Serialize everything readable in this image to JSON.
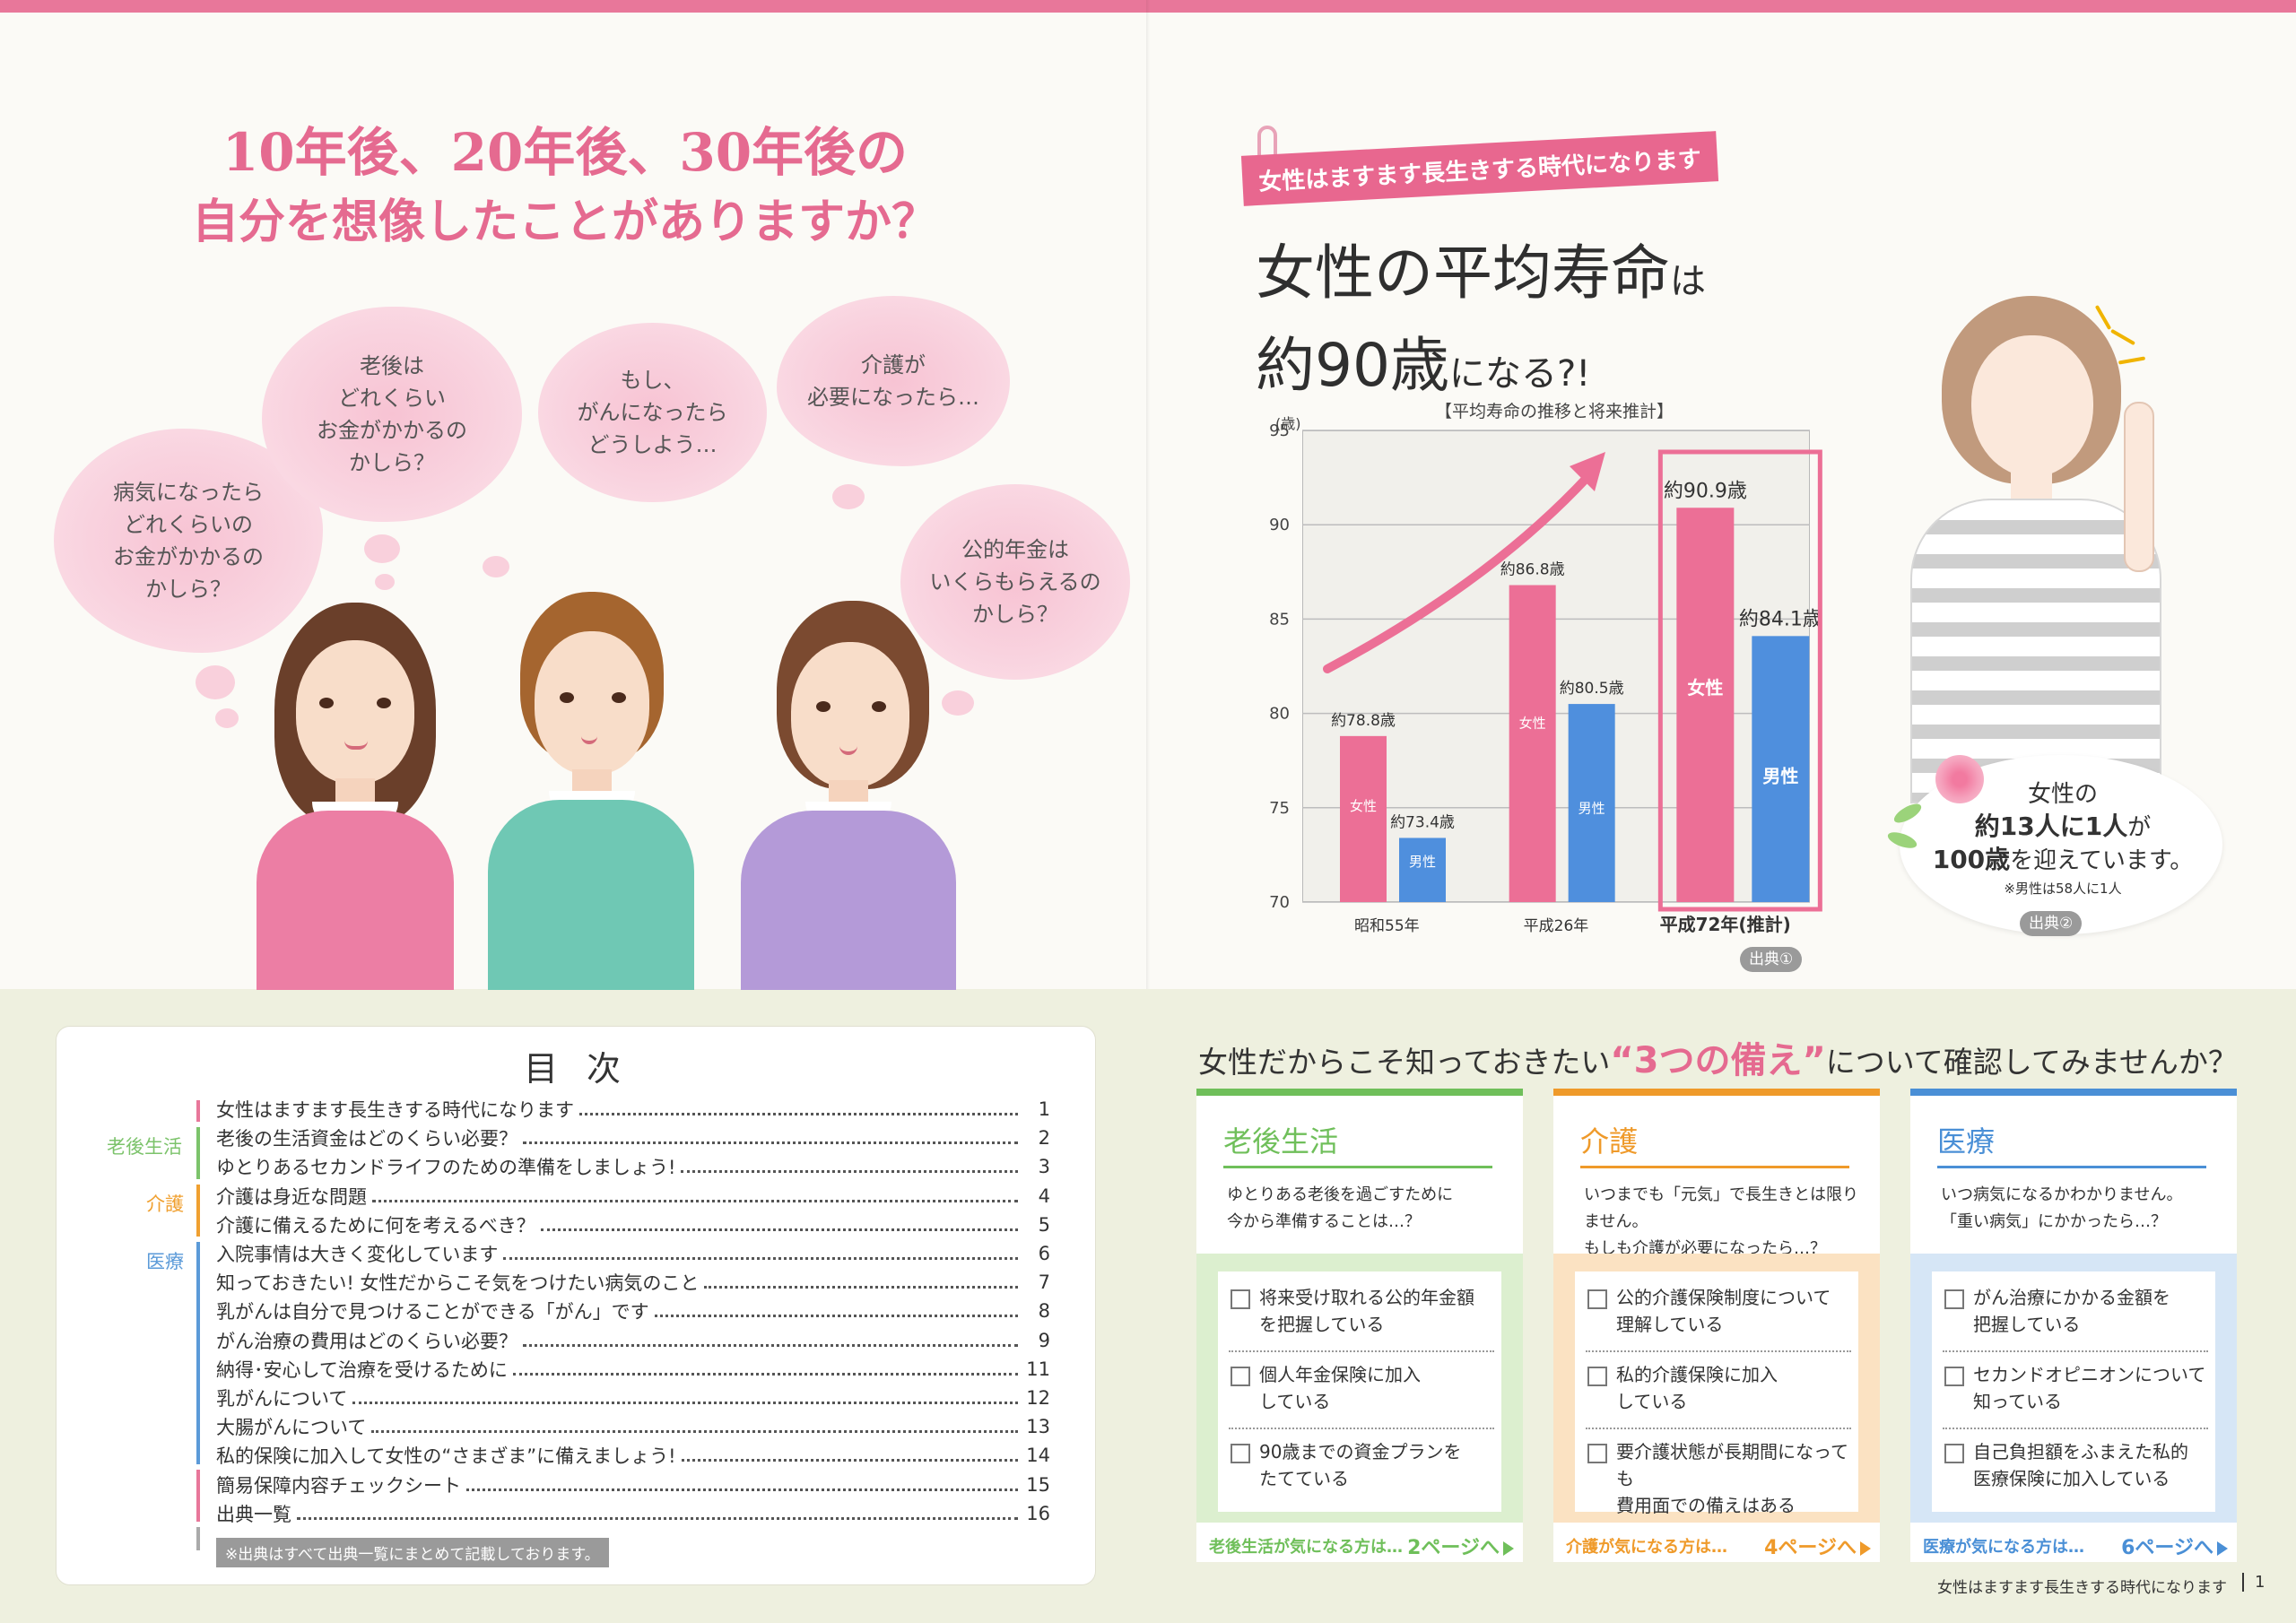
{
  "left": {
    "headline_line1": "10年後、20年後、30年後の",
    "headline_line2": "自分を想像したことがありますか？",
    "thoughts": [
      "病気になったら\nどれくらいの\nお金がかかるの\nかしら？",
      "老後は\nどれくらい\nお金がかかるの\nかしら？",
      "もし、\nがんになったら\nどうしよう…",
      "介護が\n必要になったら…",
      "公的年金は\nいくらもらえるの\nかしら？"
    ]
  },
  "right": {
    "tag": "女性はますます長生きする時代になります",
    "title_big1": "女性の平均寿命",
    "title_small1": "は",
    "title_big2": "約90歳",
    "title_small2": "になる?!",
    "source1": "出典①",
    "info_line1": "女性の",
    "info_line2": "約13人に1人",
    "info_line2b": "が",
    "info_line3": "100歳",
    "info_line3b": "を迎えています。",
    "info_note": "※男性は58人に1人",
    "source2": "出典②"
  },
  "chart_data": {
    "type": "bar",
    "title": "【平均寿命の推移と将来推計】",
    "ylabel": "(歳)",
    "ylim": [
      70,
      95
    ],
    "yticks": [
      70,
      75,
      80,
      85,
      90,
      95
    ],
    "categories": [
      "昭和55年",
      "平成26年",
      "平成72年(推計)"
    ],
    "series": [
      {
        "name": "女性",
        "values": [
          78.8,
          86.8,
          90.9
        ],
        "labels": [
          "約78.8歳",
          "約86.8歳",
          "約90.9歳"
        ],
        "color": "#ec6f96"
      },
      {
        "name": "男性",
        "values": [
          73.4,
          80.5,
          84.1
        ],
        "labels": [
          "約73.4歳",
          "約80.5歳",
          "約84.1歳"
        ],
        "color": "#4f8fdd"
      }
    ],
    "highlight_category": "平成72年(推計)",
    "grid": true
  },
  "toc": {
    "title": "目 次",
    "categories": [
      {
        "label": "老後生活",
        "color": "#7cc36b"
      },
      {
        "label": "介護",
        "color": "#f0a030"
      },
      {
        "label": "医療",
        "color": "#5b9ad8"
      }
    ],
    "items": [
      {
        "text": "女性はますます長生きする時代になります",
        "page": "1"
      },
      {
        "text": "老後の生活資金はどのくらい必要？",
        "page": "2"
      },
      {
        "text": "ゆとりあるセカンドライフのための準備をしましょう!",
        "page": "3"
      },
      {
        "text": "介護は身近な問題",
        "page": "4"
      },
      {
        "text": "介護に備えるために何を考えるべき？",
        "page": "5"
      },
      {
        "text": "入院事情は大きく変化しています",
        "page": "6"
      },
      {
        "text": "知っておきたい! 女性だからこそ気をつけたい病気のこと",
        "page": "7"
      },
      {
        "text": "乳がんは自分で見つけることができる「がん」です",
        "page": "8"
      },
      {
        "text": "がん治療の費用はどのくらい必要？",
        "page": "9"
      },
      {
        "text": "納得･安心して治療を受けるために",
        "page": "11"
      },
      {
        "text": "乳がんについて",
        "page": "12"
      },
      {
        "text": "大腸がんについて",
        "page": "13"
      },
      {
        "text": "私的保険に加入して女性の“さまざま”に備えましょう!",
        "page": "14"
      },
      {
        "text": "簡易保障内容チェックシート",
        "page": "15"
      },
      {
        "text": "出典一覧",
        "page": "16"
      }
    ],
    "note": "※出典はすべて出典一覧にまとめて記載しております。"
  },
  "prep": {
    "title_pre": "女性だからこそ知っておきたい",
    "title_em": "“3つの備え”",
    "title_post": "について確認してみませんか？",
    "cards": [
      {
        "title": "老後生活",
        "color": "#6fbf5a",
        "panel": "#dcefcf",
        "lead": "ゆとりある老後を過ごすために\n今から準備することは…？",
        "checks": [
          "将来受け取れる公的年金額\nを把握している",
          "個人年金保険に加入\nしている",
          "90歳までの資金プランを\nたてている"
        ],
        "foot": "老後生活が気になる方は…",
        "page": "2ページへ"
      },
      {
        "title": "介護",
        "color": "#ef9a2a",
        "panel": "#fbe2c2",
        "lead": "いつまでも「元気」で長生きとは限りません。\nもしも介護が必要になったら…？",
        "checks": [
          "公的介護保険制度について\n理解している",
          "私的介護保険に加入\nしている",
          "要介護状態が長期間になっても\n費用面での備えはある"
        ],
        "foot": "介護が気になる方は…",
        "page": "4ページへ"
      },
      {
        "title": "医療",
        "color": "#4a8fd6",
        "panel": "#d6e6f6",
        "lead": "いつ病気になるかわかりません。\n「重い病気」にかかったら…？",
        "checks": [
          "がん治療にかかる金額を\n把握している",
          "セカンドオピニオンについて\n知っている",
          "自己負担額をふまえた私的\n医療保険に加入している"
        ],
        "foot": "医療が気になる方は…",
        "page": "6ページへ"
      }
    ]
  },
  "footer": {
    "running_head": "女性はますます長生きする時代になります",
    "page": "1"
  }
}
